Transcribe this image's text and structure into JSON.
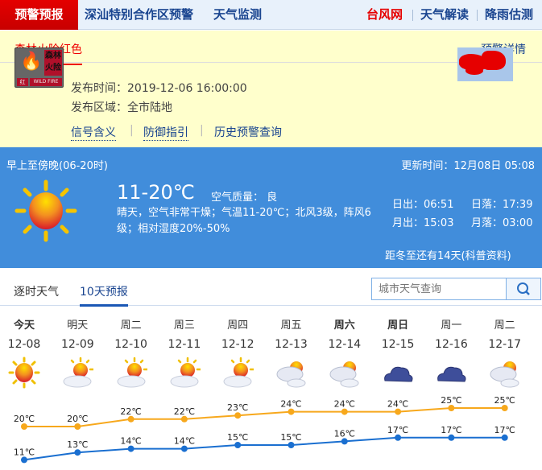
{
  "topnav": {
    "active": "预警预报",
    "links": [
      "深汕特别合作区预警",
      "天气监测"
    ],
    "right": [
      {
        "label": "台风网",
        "color": "#e60000"
      },
      {
        "label": "天气解读",
        "color": "#1a4590"
      },
      {
        "label": "降雨估测",
        "color": "#1a4590"
      }
    ]
  },
  "warning": {
    "tab": "森林火险红色",
    "detail_link": "预警详情",
    "icon": {
      "name_text": "森林火险",
      "level_text": "红",
      "en_text": "WILD FIRE"
    },
    "publish_time": "发布时间：2019-12-06 16:00:00",
    "publish_area": "发布区域：全市陆地",
    "links": [
      "信号含义",
      "防御指引",
      "历史预警查询"
    ]
  },
  "today": {
    "period": "早上至傍晚(06-20时)",
    "update_time": "更新时间：12月08日 05:08",
    "temp": "11-20℃",
    "air_quality": "空气质量： 良",
    "desc": "晴天，空气非常干燥；气温11-20℃；北风3级，阵风6级；相对湿度20%-50%",
    "sunrise": "日出：06:51",
    "sunset": "日落：17:39",
    "moonrise": "月出：15:03",
    "moonset": "月落：03:00",
    "solar_term": "距冬至还有14天(科普资料)",
    "icon": "sunny-icon"
  },
  "tabs": {
    "items": [
      "逐时天气",
      "10天预报"
    ],
    "active": 1,
    "search_placeholder": "城市天气查询"
  },
  "forecast": {
    "days": [
      {
        "name": "今天",
        "date": "12-08",
        "icon": "sunny",
        "bold": true
      },
      {
        "name": "明天",
        "date": "12-09",
        "icon": "partly-cloudy"
      },
      {
        "name": "周二",
        "date": "12-10",
        "icon": "partly-cloudy"
      },
      {
        "name": "周三",
        "date": "12-11",
        "icon": "partly-cloudy"
      },
      {
        "name": "周四",
        "date": "12-12",
        "icon": "partly-cloudy"
      },
      {
        "name": "周五",
        "date": "12-13",
        "icon": "cloudy-sun"
      },
      {
        "name": "周六",
        "date": "12-14",
        "icon": "cloudy-sun",
        "bold": true
      },
      {
        "name": "周日",
        "date": "12-15",
        "icon": "overcast",
        "bold": true
      },
      {
        "name": "周一",
        "date": "12-16",
        "icon": "overcast"
      },
      {
        "name": "周二",
        "date": "12-17",
        "icon": "cloudy-sun"
      }
    ]
  },
  "chart_data": {
    "type": "line",
    "categories": [
      "12-08",
      "12-09",
      "12-10",
      "12-11",
      "12-12",
      "12-13",
      "12-14",
      "12-15",
      "12-16",
      "12-17"
    ],
    "unit": "℃",
    "series": [
      {
        "values": [
          20,
          20,
          22,
          22,
          23,
          24,
          24,
          24,
          25,
          25
        ],
        "color": "#f7a81c"
      },
      {
        "values": [
          11,
          13,
          14,
          14,
          15,
          15,
          16,
          17,
          17,
          17
        ],
        "color": "#1a6fd0"
      }
    ]
  }
}
